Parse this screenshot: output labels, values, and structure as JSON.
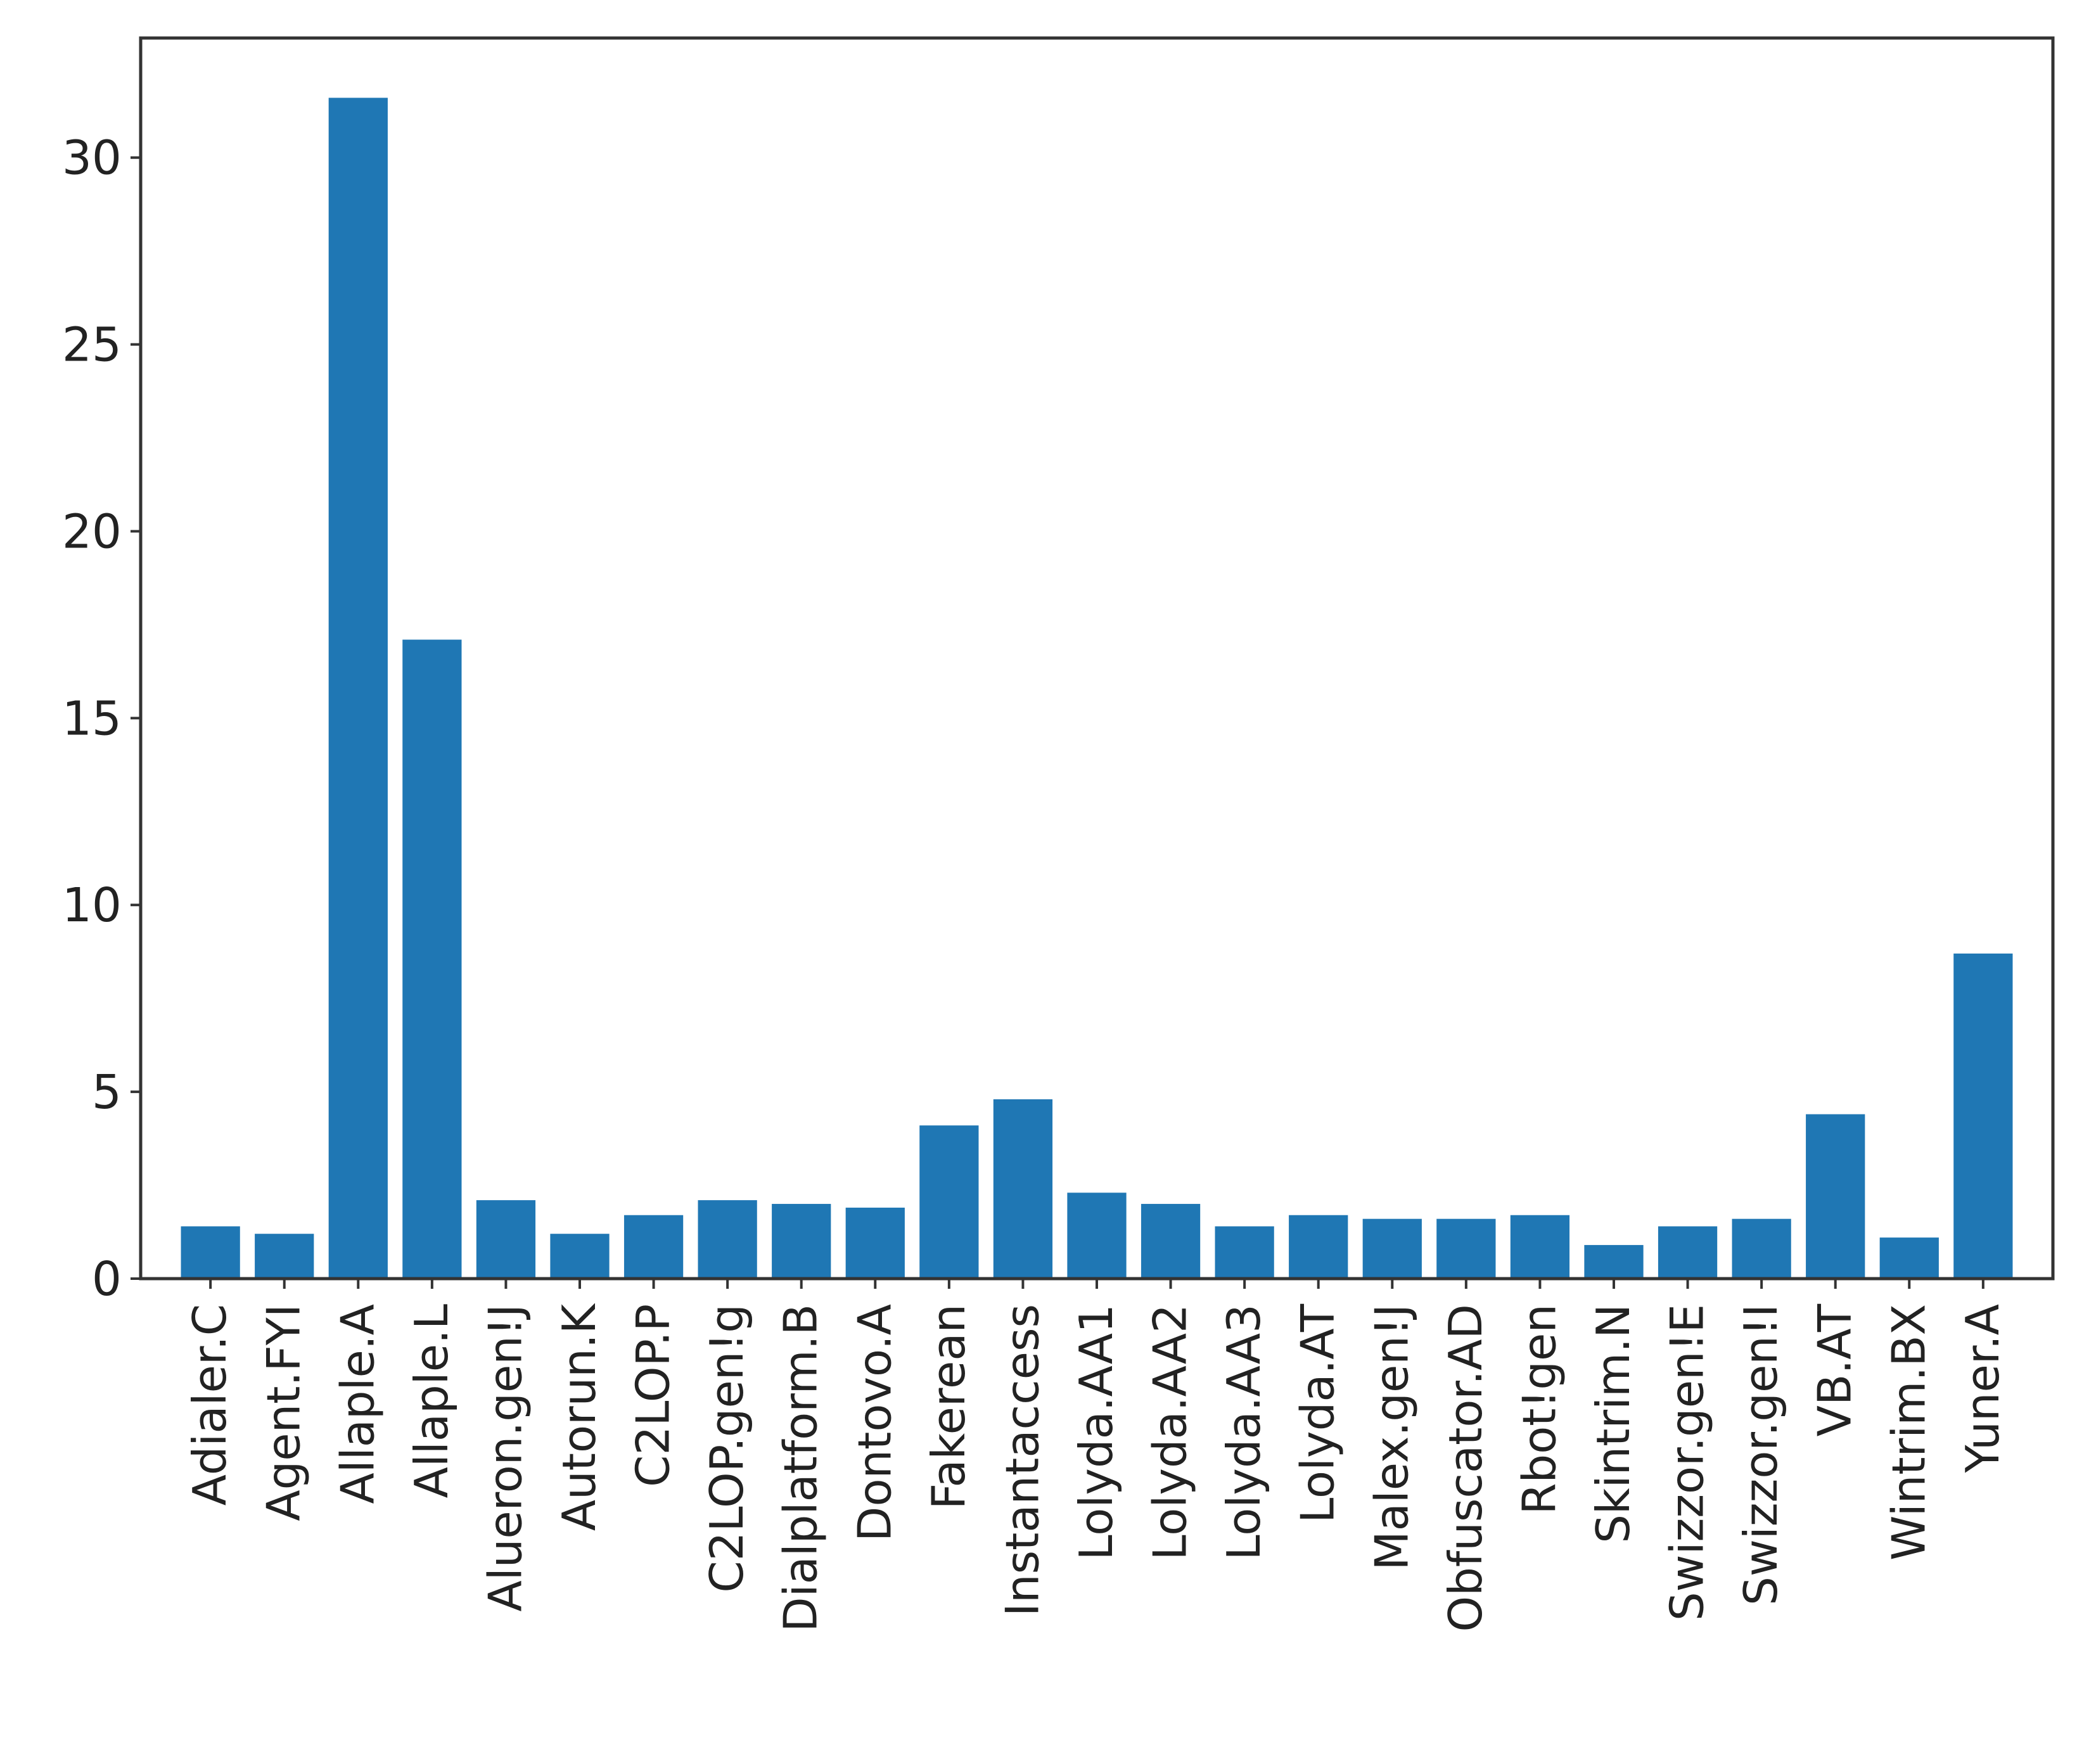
{
  "chart_data": {
    "type": "bar",
    "title": "",
    "xlabel": "",
    "ylabel": "",
    "ylim": [
      0,
      33.2
    ],
    "yticks": [
      0,
      5,
      10,
      15,
      20,
      25,
      30
    ],
    "grid": false,
    "bar_color": "#1f77b4",
    "categories": [
      "Adialer.C",
      "Agent.FYI",
      "Allaple.A",
      "Allaple.L",
      "Alueron.gen!J",
      "Autorun.K",
      "C2LOP.P",
      "C2LOP.gen!g",
      "Dialplatform.B",
      "Dontovo.A",
      "Fakerean",
      "Instantaccess",
      "Lolyda.AA1",
      "Lolyda.AA2",
      "Lolyda.AA3",
      "Lolyda.AT",
      "Malex.gen!J",
      "Obfuscator.AD",
      "Rbot!gen",
      "Skintrim.N",
      "Swizzor.gen!E",
      "Swizzor.gen!I",
      "VB.AT",
      "Wintrim.BX",
      "Yuner.A"
    ],
    "values": [
      1.4,
      1.2,
      31.6,
      17.1,
      2.1,
      1.2,
      1.7,
      2.1,
      2.0,
      1.9,
      4.1,
      4.8,
      2.3,
      2.0,
      1.4,
      1.7,
      1.6,
      1.6,
      1.7,
      0.9,
      1.4,
      1.6,
      4.4,
      1.1,
      8.7
    ]
  }
}
